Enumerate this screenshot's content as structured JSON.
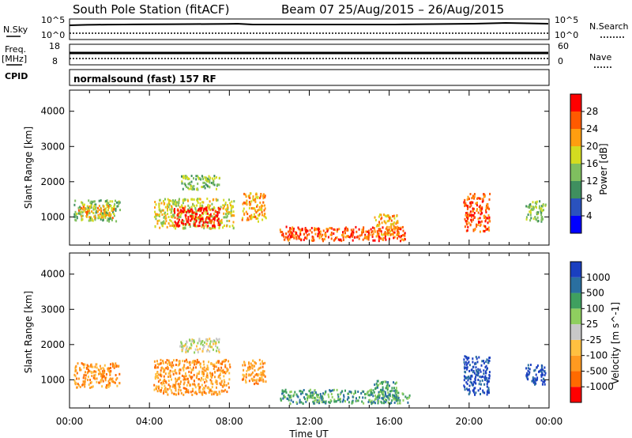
{
  "header": {
    "station_title": "South Pole Station (fitACF)",
    "beam_date": "Beam 07  25/Aug/2015 – 26/Aug/2015"
  },
  "left_labels": {
    "nsky": "N.Sky",
    "freq": "Freq.",
    "freq_unit": "[MHz]",
    "cpid": "CPID"
  },
  "right_labels": {
    "nsearch": "N.Search",
    "nave": "Nave"
  },
  "noise_panel": {
    "left_ticks": [
      "10^5",
      "10^0"
    ],
    "right_ticks": [
      "10^5",
      "10^0"
    ]
  },
  "freq_panel": {
    "left_ticks": [
      "18",
      "8"
    ],
    "right_ticks": [
      "60",
      "0"
    ]
  },
  "cpid_text": "normalsound (fast) 157 RF",
  "colors": {
    "power_scale": [
      "#0000ff",
      "#2a52be",
      "#3f8f5f",
      "#7fbf5f",
      "#d4dc20",
      "#ff9e10",
      "#ff5a00",
      "#ff0000"
    ],
    "velocity_scale": [
      "#ff0000",
      "#ff6a00",
      "#ff9a20",
      "#ffc040",
      "#c8c8c8",
      "#8fcf5f",
      "#3fa05f",
      "#2a6fa0",
      "#1a3fc0"
    ]
  },
  "chart_data": [
    {
      "type": "heatmap",
      "panel": "power",
      "xlabel": "",
      "ylabel": "Slant Range [km]",
      "x_ticks": [
        "00:00",
        "04:00",
        "08:00",
        "12:00",
        "16:00",
        "20:00",
        "00:00"
      ],
      "y_ticks": [
        1000,
        2000,
        3000,
        4000
      ],
      "ylim": [
        200,
        4600
      ],
      "colorbar_label": "Power [dB]",
      "colorbar_ticks": [
        4,
        8,
        12,
        16,
        20,
        24,
        28
      ],
      "regions": [
        {
          "t0": 0.2,
          "t1": 2.5,
          "r0": 900,
          "r1": 1500,
          "level": 3
        },
        {
          "t0": 0.4,
          "t1": 2.2,
          "r0": 1000,
          "r1": 1350,
          "level": 5
        },
        {
          "t0": 4.2,
          "t1": 8.2,
          "r0": 700,
          "r1": 1550,
          "level": 4
        },
        {
          "t0": 5.2,
          "t1": 7.5,
          "r0": 750,
          "r1": 1300,
          "level": 7
        },
        {
          "t0": 8.6,
          "t1": 9.8,
          "r0": 900,
          "r1": 1700,
          "level": 5
        },
        {
          "t0": 5.5,
          "t1": 7.5,
          "r0": 1800,
          "r1": 2200,
          "level": 3
        },
        {
          "t0": 10.5,
          "t1": 17.0,
          "r0": 350,
          "r1": 750,
          "level": 6
        },
        {
          "t0": 15.2,
          "t1": 16.4,
          "r0": 500,
          "r1": 1100,
          "level": 5
        },
        {
          "t0": 19.7,
          "t1": 21.0,
          "r0": 600,
          "r1": 1700,
          "level": 6
        },
        {
          "t0": 22.8,
          "t1": 23.8,
          "r0": 900,
          "r1": 1500,
          "level": 3
        }
      ]
    },
    {
      "type": "heatmap",
      "panel": "velocity",
      "xlabel": "Time UT",
      "ylabel": "Slant Range [km]",
      "x_ticks": [
        "00:00",
        "04:00",
        "08:00",
        "12:00",
        "16:00",
        "20:00",
        "00:00"
      ],
      "y_ticks": [
        1000,
        2000,
        3000,
        4000
      ],
      "ylim": [
        200,
        4600
      ],
      "colorbar_label": "Velocity [m s^-1]",
      "colorbar_ticks": [
        -1000,
        -500,
        -100,
        -25,
        25,
        100,
        500,
        1000
      ],
      "regions": [
        {
          "t0": 0.2,
          "t1": 2.5,
          "r0": 800,
          "r1": 1500,
          "level": 2
        },
        {
          "t0": 4.2,
          "t1": 8.0,
          "r0": 600,
          "r1": 1600,
          "level": 2
        },
        {
          "t0": 8.6,
          "t1": 9.8,
          "r0": 900,
          "r1": 1600,
          "level": 2
        },
        {
          "t0": 5.5,
          "t1": 7.5,
          "r0": 1800,
          "r1": 2200,
          "level": 4
        },
        {
          "t0": 10.5,
          "t1": 17.0,
          "r0": 350,
          "r1": 750,
          "level": 6
        },
        {
          "t0": 15.2,
          "t1": 16.4,
          "r0": 500,
          "r1": 1000,
          "level": 6
        },
        {
          "t0": 19.7,
          "t1": 21.0,
          "r0": 600,
          "r1": 1700,
          "level": 8
        },
        {
          "t0": 22.8,
          "t1": 23.8,
          "r0": 900,
          "r1": 1500,
          "level": 8
        }
      ]
    }
  ]
}
